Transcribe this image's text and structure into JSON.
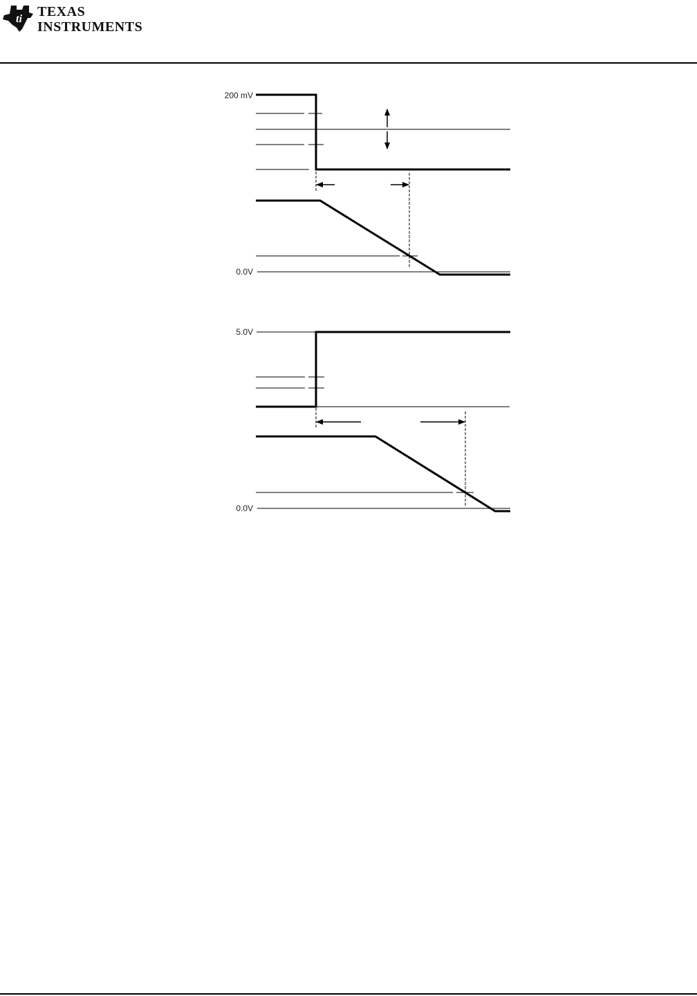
{
  "header": {
    "brand_line1": "Texas",
    "brand_line2": "Instruments",
    "logo": "ti-logo"
  },
  "diagram_top": {
    "level_high_label": "200 mV",
    "level_low_label": "0.0V"
  },
  "diagram_bottom": {
    "level_high_label": "5.0V",
    "level_low_label": "0.0V"
  },
  "colors": {
    "ink": "#000000",
    "background": "#ffffff"
  }
}
